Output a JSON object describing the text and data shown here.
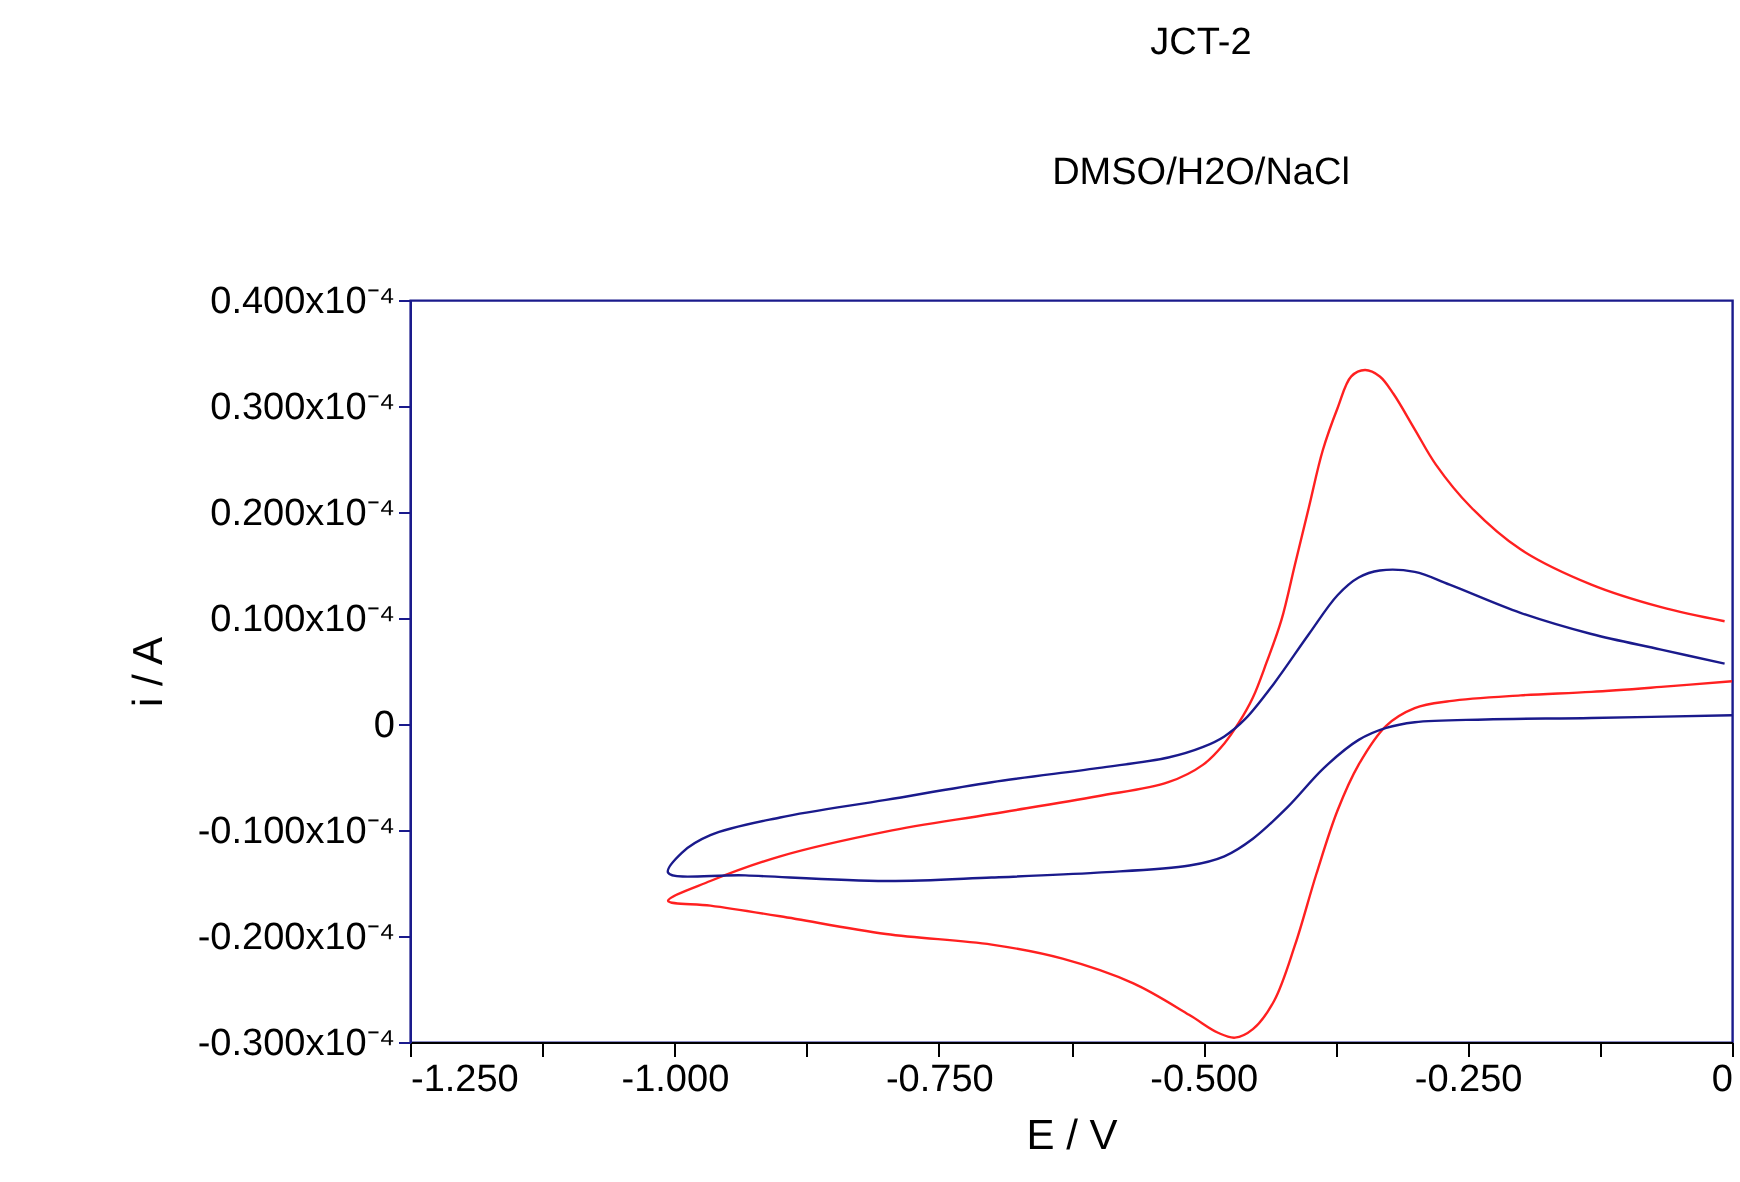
{
  "chart_data": {
    "type": "line",
    "title": "JCT-2",
    "subtitle": "DMSO/H2O/NaCl",
    "xlabel": "E / V",
    "ylabel": "i / A",
    "xlim": [
      -1.25,
      0
    ],
    "ylim": [
      -3e-05,
      4e-05
    ],
    "xticks": [
      {
        "value": -1.25,
        "label": "-1.250"
      },
      {
        "value": -1.125,
        "label": null
      },
      {
        "value": -1.0,
        "label": "-1.000"
      },
      {
        "value": -0.875,
        "label": null
      },
      {
        "value": -0.75,
        "label": "-0.750"
      },
      {
        "value": -0.625,
        "label": null
      },
      {
        "value": -0.5,
        "label": "-0.500"
      },
      {
        "value": -0.375,
        "label": null
      },
      {
        "value": -0.25,
        "label": "-0.250"
      },
      {
        "value": -0.125,
        "label": null
      },
      0
    ],
    "yticks": [
      {
        "value": 4e-05,
        "label": "0.400x10⁻⁴"
      },
      {
        "value": 3e-05,
        "label": "0.300x10⁻⁴"
      },
      {
        "value": 2e-05,
        "label": "0.200x10⁻⁴"
      },
      {
        "value": 1e-05,
        "label": "0.100x10⁻⁴"
      },
      0,
      {
        "value": -1e-05,
        "label": "-0.100x10⁻⁴"
      },
      {
        "value": -2e-05,
        "label": "-0.200x10⁻⁴"
      },
      {
        "value": -3e-05,
        "label": "-0.300x10⁻⁴"
      }
    ],
    "grid": false,
    "line_style": "solid",
    "marker": "none",
    "series": [
      {
        "color": "#ff2020",
        "x": [
          -0.007,
          -0.067,
          -0.133,
          -0.2,
          -0.247,
          -0.28,
          -0.3,
          -0.32,
          -0.333,
          -0.347,
          -0.36,
          -0.373,
          -0.387,
          -0.4,
          -0.413,
          -0.426,
          -0.44,
          -0.453,
          -0.466,
          -0.48,
          -0.5,
          -0.533,
          -0.6,
          -0.7,
          -0.8,
          -0.9,
          -0.966,
          -1.006,
          -0.966,
          -0.9,
          -0.8,
          -0.7,
          -0.633,
          -0.566,
          -0.513,
          -0.486,
          -0.47,
          -0.453,
          -0.433,
          -0.413,
          -0.393,
          -0.373,
          -0.353,
          -0.327,
          -0.3,
          -0.267,
          -0.2,
          -0.133,
          -0.067,
          0
        ],
        "values": [
          9.69e-06,
          1.102e-05,
          1.315e-05,
          1.648e-05,
          2.047e-05,
          2.447e-05,
          2.78e-05,
          3.113e-05,
          3.279e-05,
          3.339e-05,
          3.279e-05,
          2.979e-05,
          2.58e-05,
          2.047e-05,
          1.515e-05,
          9.82e-06,
          5.83e-06,
          2.5e-06,
          1.7e-07,
          -1.83e-06,
          -3.83e-06,
          -5.49e-06,
          -6.82e-06,
          -8.49e-06,
          -1.015e-05,
          -1.248e-05,
          -1.481e-05,
          -1.668e-05,
          -1.714e-05,
          -1.814e-05,
          -1.981e-05,
          -2.081e-05,
          -2.214e-05,
          -2.447e-05,
          -2.746e-05,
          -2.913e-05,
          -2.959e-05,
          -2.879e-05,
          -2.613e-05,
          -2.08e-05,
          -1.415e-05,
          -8.16e-06,
          -3.83e-06,
          -1.7e-07,
          1.5e-06,
          2.16e-06,
          2.7e-06,
          3.03e-06,
          3.5e-06,
          4.03e-06
        ]
      },
      {
        "color": "#1a1a8c",
        "x": [
          -0.007,
          -0.067,
          -0.133,
          -0.2,
          -0.267,
          -0.3,
          -0.333,
          -0.353,
          -0.373,
          -0.4,
          -0.433,
          -0.46,
          -0.48,
          -0.5,
          -0.533,
          -0.6,
          -0.7,
          -0.8,
          -0.9,
          -0.966,
          -0.993,
          -1.006,
          -0.933,
          -0.8,
          -0.7,
          -0.6,
          -0.513,
          -0.48,
          -0.453,
          -0.42,
          -0.386,
          -0.353,
          -0.327,
          -0.3,
          -0.233,
          -0.133,
          0
        ],
        "values": [
          5.69e-06,
          7.02e-06,
          8.49e-06,
          1.049e-05,
          1.315e-05,
          1.435e-05,
          1.448e-05,
          1.382e-05,
          1.215e-05,
          8.49e-06,
          3.83e-06,
          5e-07,
          -1.17e-06,
          -2.16e-06,
          -3.16e-06,
          -4.16e-06,
          -5.49e-06,
          -7.16e-06,
          -8.82e-06,
          -1.049e-05,
          -1.215e-05,
          -1.402e-05,
          -1.428e-05,
          -1.481e-05,
          -1.448e-05,
          -1.402e-05,
          -1.335e-05,
          -1.248e-05,
          -1.082e-05,
          -7.82e-06,
          -4.16e-06,
          -1.5e-06,
          -3.7e-07,
          1.7e-07,
          4.3e-07,
          5.7e-07,
          8.3e-07
        ]
      }
    ]
  }
}
